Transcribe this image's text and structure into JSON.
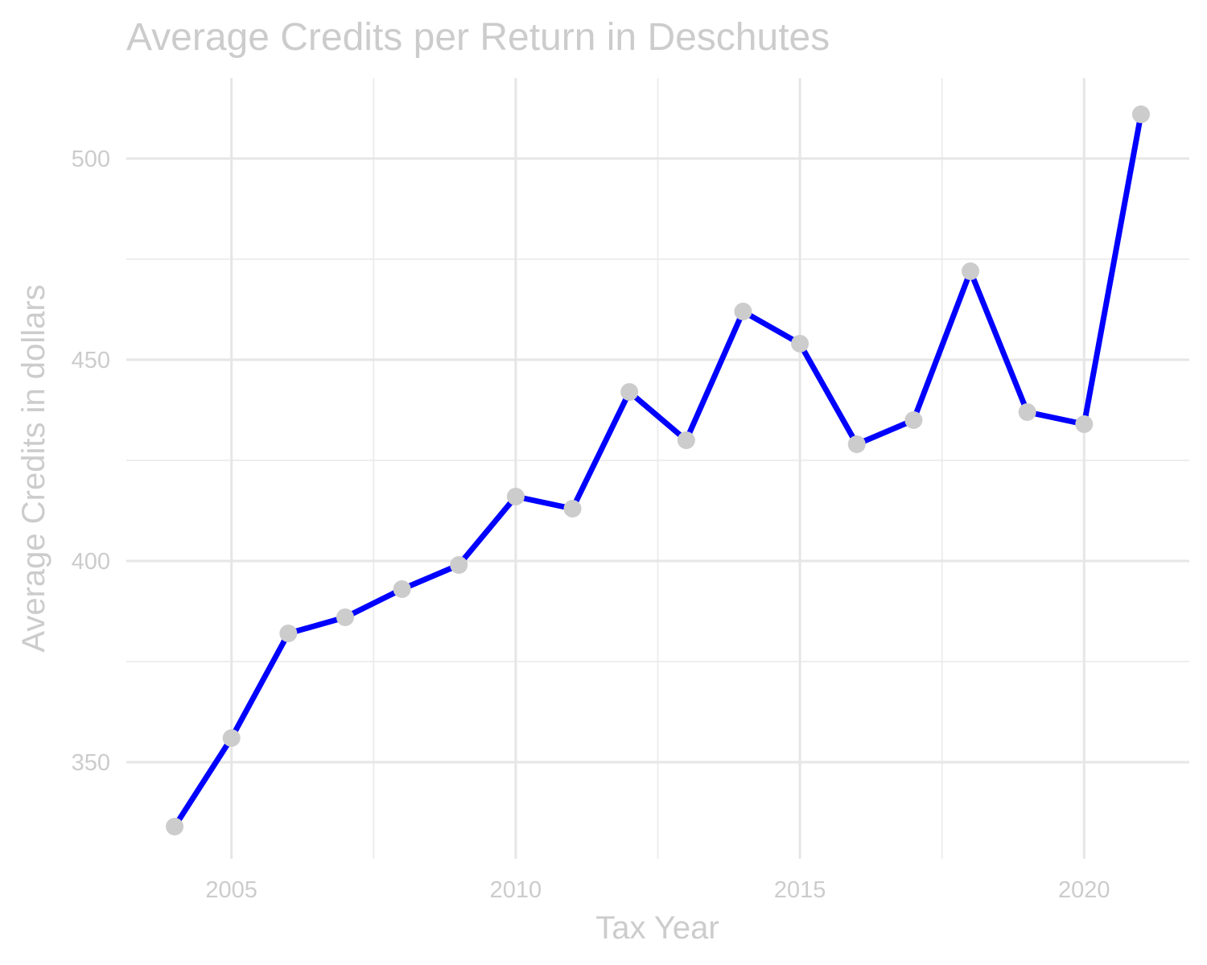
{
  "chart_data": {
    "type": "line",
    "title": "Average Credits per Return in Deschutes",
    "xlabel": "Tax Year",
    "ylabel": "Average Credits in dollars",
    "x_ticks": [
      "2005",
      "2010",
      "2015",
      "2020"
    ],
    "y_ticks": [
      "350",
      "400",
      "450",
      "500"
    ],
    "xlim": [
      2003.15,
      2021.85
    ],
    "ylim": [
      326,
      520
    ],
    "grid": true,
    "legend": "none",
    "line_color": "#0000ff",
    "point_color": "#cccccc",
    "series": [
      {
        "x": [
          2004,
          2005,
          2006,
          2007,
          2008,
          2009,
          2010,
          2011,
          2012,
          2013,
          2014,
          2015,
          2016,
          2017,
          2018,
          2019,
          2020,
          2021
        ],
        "y": [
          334,
          356,
          382,
          386,
          393,
          399,
          416,
          413,
          442,
          430,
          462,
          454,
          429,
          435,
          472,
          437,
          434,
          511
        ]
      }
    ]
  }
}
